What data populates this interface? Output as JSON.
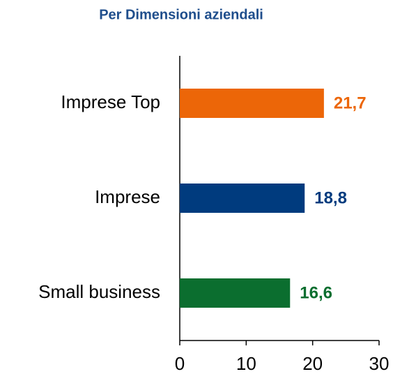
{
  "chart_data": {
    "type": "hbar",
    "title": "Per Dimensioni aziendali",
    "categories": [
      "Imprese Top",
      "Imprese",
      "Small business"
    ],
    "values": [
      21.7,
      18.8,
      16.6
    ],
    "value_labels": [
      "21,7",
      "18,8",
      "16,6"
    ],
    "colors": [
      "#ec6608",
      "#003b7e",
      "#0b6e2f"
    ],
    "xlim": [
      0,
      30
    ],
    "xticks": [
      0,
      10,
      20,
      30
    ]
  }
}
